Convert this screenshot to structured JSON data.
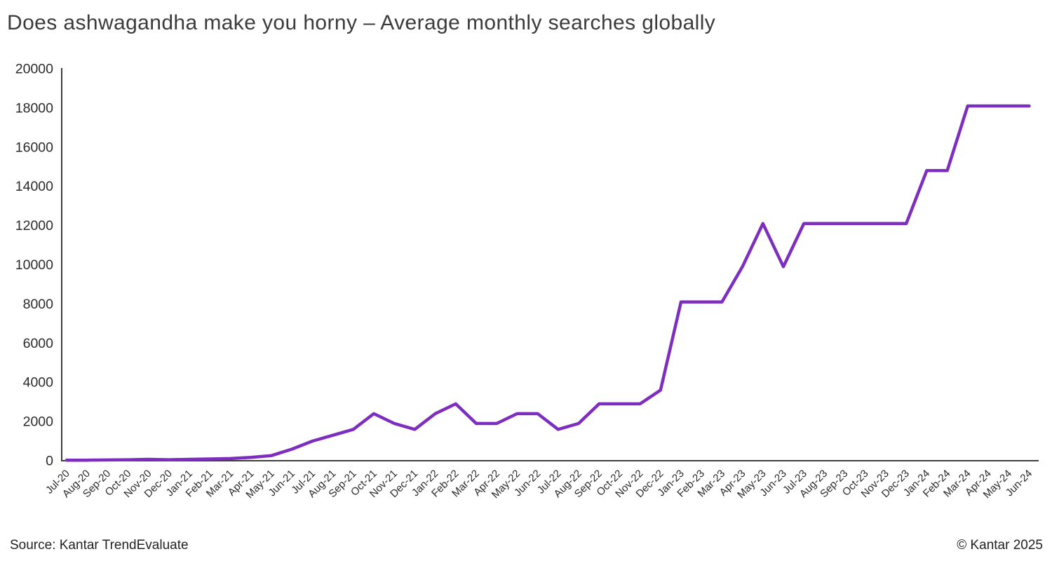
{
  "title": "Does ashwagandha make you horny – Average monthly searches globally",
  "footer": {
    "source": "Source: Kantar TrendEvaluate",
    "copyright": "© Kantar 2025"
  },
  "chart_data": {
    "type": "line",
    "title": "Does ashwagandha make you horny – Average monthly searches globally",
    "xlabel": "",
    "ylabel": "",
    "ylim": [
      0,
      20000
    ],
    "ytick_interval": 2000,
    "grid": false,
    "legend": "none",
    "line_color": "#7e2ebe",
    "axis_color": "#3d3d3d",
    "tick_label_color": "#2b2b2b",
    "categories": [
      "Jul-20",
      "Aug-20",
      "Sep-20",
      "Oct-20",
      "Nov-20",
      "Dec-20",
      "Jan-21",
      "Feb-21",
      "Mar-21",
      "Apr-21",
      "May-21",
      "Jun-21",
      "Jul-21",
      "Aug-21",
      "Sep-21",
      "Oct-21",
      "Nov-21",
      "Dec-21",
      "Jan-22",
      "Feb-22",
      "Mar-22",
      "Apr-22",
      "May-22",
      "Jun-22",
      "Jul-22",
      "Aug-22",
      "Sep-22",
      "Oct-22",
      "Nov-22",
      "Dec-22",
      "Jan-23",
      "Feb-23",
      "Mar-23",
      "Apr-23",
      "May-23",
      "Jun-23",
      "Jul-23",
      "Aug-23",
      "Sep-23",
      "Oct-23",
      "Nov-23",
      "Dec-23",
      "Jan-24",
      "Feb-24",
      "Mar-24",
      "Apr-24",
      "May-24",
      "Jun-24"
    ],
    "series": [
      {
        "name": "Average monthly searches globally",
        "values": [
          30,
          30,
          40,
          50,
          70,
          50,
          70,
          90,
          110,
          170,
          260,
          590,
          1000,
          1300,
          1600,
          2400,
          1900,
          1600,
          2400,
          2900,
          1900,
          1900,
          2400,
          2400,
          1600,
          1900,
          2900,
          2900,
          2900,
          3600,
          8100,
          8100,
          8100,
          9900,
          12100,
          9900,
          12100,
          12100,
          12100,
          12100,
          12100,
          12100,
          14800,
          14800,
          18100,
          18100,
          18100,
          18100
        ]
      }
    ]
  }
}
